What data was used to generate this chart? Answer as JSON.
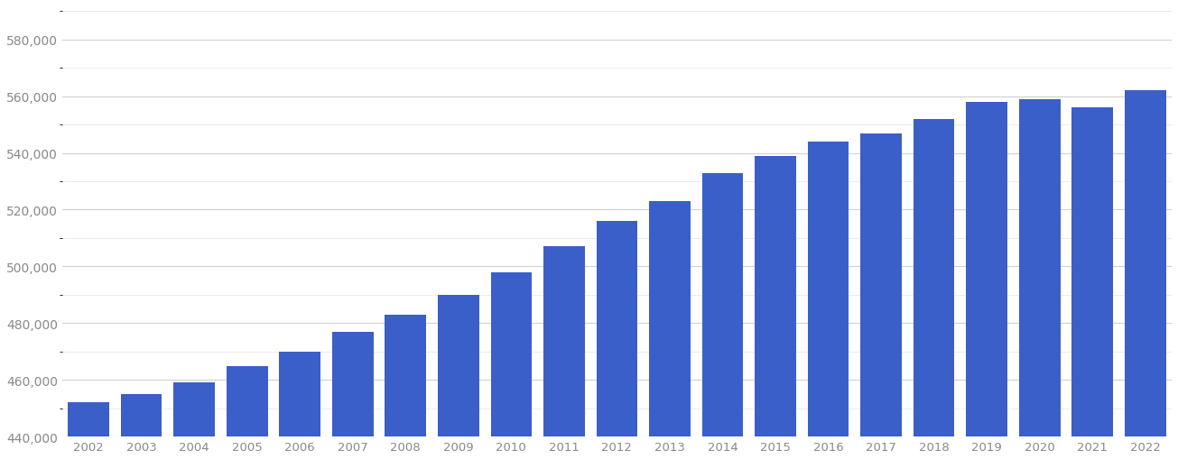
{
  "years": [
    2002,
    2003,
    2004,
    2005,
    2006,
    2007,
    2008,
    2009,
    2010,
    2011,
    2012,
    2013,
    2014,
    2015,
    2016,
    2017,
    2018,
    2019,
    2020,
    2021,
    2022
  ],
  "values": [
    452000,
    455000,
    459000,
    465000,
    470000,
    477000,
    483000,
    490000,
    498000,
    507000,
    516000,
    523000,
    533000,
    539000,
    544000,
    547000,
    552000,
    558000,
    559000,
    556000,
    562000
  ],
  "bar_color": "#3a5fc8",
  "background_color": "#ffffff",
  "grid_color": "#d0d0d0",
  "minor_grid_color": "#e8e8e8",
  "tick_color": "#888888",
  "ylim_min": 440000,
  "ylim_max": 592000,
  "yticks": [
    440000,
    460000,
    480000,
    500000,
    520000,
    540000,
    560000,
    580000
  ],
  "bar_width": 0.78,
  "figsize": [
    13.05,
    5.1
  ],
  "dpi": 100
}
